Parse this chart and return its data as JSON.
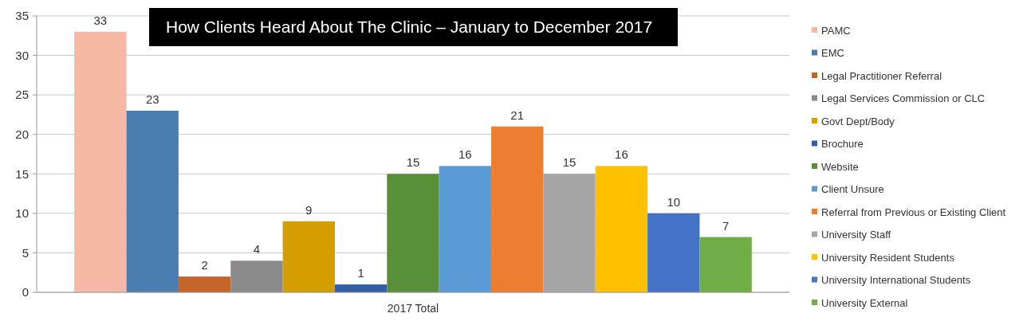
{
  "chart_data": {
    "type": "bar",
    "title": "How Clients Heard About The Clinic – January to December 2017",
    "categories": [
      "2017 Total"
    ],
    "series": [
      {
        "name": "PAMC",
        "color": "#f4b8a5",
        "values": [
          33
        ]
      },
      {
        "name": "EMC",
        "color": "#4a7eb0",
        "values": [
          23
        ]
      },
      {
        "name": "Legal Practitioner Referral",
        "color": "#c4652a",
        "values": [
          2
        ]
      },
      {
        "name": "Legal Services Commission or CLC",
        "color": "#8a8a8a",
        "values": [
          4
        ]
      },
      {
        "name": "Govt Dept/Body",
        "color": "#d49e00",
        "values": [
          9
        ]
      },
      {
        "name": "Brochure",
        "color": "#335ea8",
        "values": [
          1
        ]
      },
      {
        "name": "Website",
        "color": "#5a8f3a",
        "values": [
          15
        ]
      },
      {
        "name": "Client Unsure",
        "color": "#5b9bd5",
        "values": [
          16
        ]
      },
      {
        "name": "Referral from Previous or Existing Client",
        "color": "#ed7d31",
        "values": [
          21
        ]
      },
      {
        "name": "University Staff",
        "color": "#a5a5a5",
        "values": [
          15
        ]
      },
      {
        "name": "University Resident Students",
        "color": "#ffc000",
        "values": [
          16
        ]
      },
      {
        "name": "University International Students",
        "color": "#4472c4",
        "values": [
          10
        ]
      },
      {
        "name": "University External",
        "color": "#70ad47",
        "values": [
          7
        ]
      }
    ],
    "ylim": [
      0,
      35
    ],
    "yticks": [
      0,
      5,
      10,
      15,
      20,
      25,
      30,
      35
    ],
    "grid": "y",
    "legend": "right",
    "data_labels": true
  }
}
